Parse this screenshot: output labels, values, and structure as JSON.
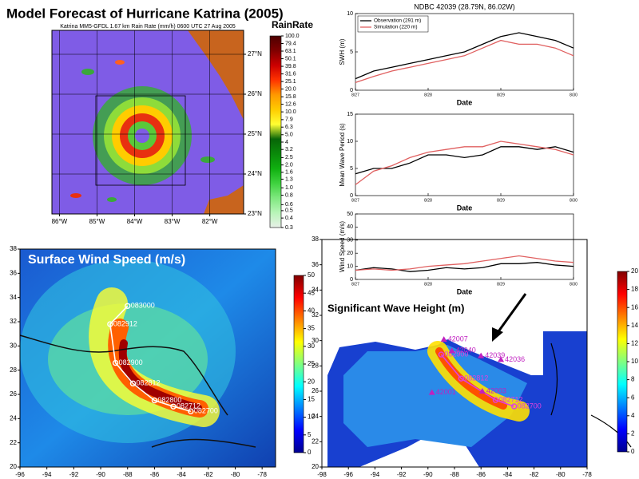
{
  "title": "Model Forecast of Hurricane Katrina (2005)",
  "chart_data": [
    {
      "type": "map",
      "subtitle": "Katrina MM5-GFDL 1.67 km Rain Rate (mm/h) 0600 UTC 27 Aug 2005",
      "xlim": [
        -86.2,
        -81.1
      ],
      "ylim": [
        23,
        27.6
      ],
      "xticks": [
        {
          "value": -86,
          "label": "86°W"
        },
        {
          "value": -85,
          "label": "85°W"
        },
        {
          "value": -84,
          "label": "84°W"
        },
        {
          "value": -83,
          "label": "83°W"
        },
        {
          "value": -82,
          "label": "82°W"
        }
      ],
      "yticks": [
        {
          "value": 23,
          "label": "23°N"
        },
        {
          "value": 24,
          "label": "24°N"
        },
        {
          "value": 25,
          "label": "25°N"
        },
        {
          "value": 26,
          "label": "26°N"
        },
        {
          "value": 27,
          "label": "27°N"
        }
      ],
      "grid": true,
      "colorbar_label": "RainRate",
      "colorbar_log": true,
      "colorbar_lim": [
        0.3,
        100
      ],
      "colorbar_ticks": [
        {
          "value": 100,
          "label": "100.0"
        },
        79.4,
        63.1,
        50.1,
        39.8,
        31.6,
        25.1,
        {
          "value": 20,
          "label": "20.0"
        },
        15.8,
        12.6,
        {
          "value": 10,
          "label": "10.0"
        },
        7.9,
        6.3,
        {
          "value": 5,
          "label": "5.0"
        },
        4.0,
        3.2,
        2.5,
        {
          "value": 2,
          "label": "2.0"
        },
        1.6,
        1.3,
        {
          "value": 1,
          "label": "1.0"
        },
        0.8,
        0.6,
        0.5,
        0.4,
        0.3
      ],
      "colorbar_colors": [
        "#e8f0e8",
        "#b8f5b8",
        "#7fe87f",
        "#3fd23f",
        "#10b010",
        "#0a8a0a",
        "#086608",
        "#ffff33",
        "#ffcc00",
        "#ff9900",
        "#ff3300",
        "#cc0000",
        "#800000",
        "#4d0000"
      ]
    },
    {
      "type": "line",
      "title": "NDBC 42039 (28.79N, 86.02W)",
      "xlabel": "Date",
      "ylabel": "SWH (m)",
      "categories": [
        "8/27",
        null,
        null,
        null,
        "8/28",
        null,
        null,
        null,
        "8/29",
        null,
        null,
        null,
        "8/30"
      ],
      "ylim": [
        0,
        10
      ],
      "yticks": [
        0,
        5,
        10
      ],
      "legend": "upper left",
      "series": [
        {
          "name": "Observation (291 m)",
          "color": "#000000",
          "values": [
            1.5,
            2.5,
            3,
            3.5,
            4,
            4.5,
            5,
            6,
            7,
            7.5,
            7,
            6.5,
            5.5
          ]
        },
        {
          "name": "Simulation (220 m)",
          "color": "#e06060",
          "values": [
            1,
            1.8,
            2.5,
            3,
            3.5,
            4,
            4.5,
            5.5,
            6.5,
            6,
            6,
            5.5,
            4.5
          ]
        }
      ]
    },
    {
      "type": "line",
      "xlabel": "Date",
      "ylabel": "Mean Wave Period (s)",
      "categories": [
        "8/27",
        null,
        null,
        null,
        "8/28",
        null,
        null,
        null,
        "8/29",
        null,
        null,
        null,
        "8/30"
      ],
      "ylim": [
        0,
        15
      ],
      "yticks": [
        0,
        5,
        10,
        15
      ],
      "series": [
        {
          "color": "#000000",
          "values": [
            4,
            5,
            5,
            6,
            7.5,
            7.5,
            7,
            7.5,
            9,
            9,
            8.5,
            9,
            8
          ]
        },
        {
          "color": "#e06060",
          "values": [
            2,
            4.5,
            5.5,
            7,
            8,
            8.5,
            9,
            9,
            10,
            9.5,
            9,
            8.5,
            7.5
          ]
        }
      ]
    },
    {
      "type": "line",
      "xlabel": "Date",
      "ylabel": "Wind Speed (m/s)",
      "categories": [
        "8/27",
        null,
        null,
        null,
        "8/28",
        null,
        null,
        null,
        "8/29",
        null,
        null,
        null,
        "8/30"
      ],
      "ylim": [
        0,
        50
      ],
      "yticks": [
        0,
        10,
        20,
        30,
        40,
        50
      ],
      "series": [
        {
          "color": "#000000",
          "values": [
            7,
            9,
            8,
            6,
            7,
            9,
            8,
            9,
            12,
            12,
            13,
            11,
            10
          ]
        },
        {
          "color": "#e06060",
          "values": [
            7,
            8,
            7,
            8,
            10,
            11,
            12,
            14,
            16,
            18,
            16,
            14,
            13
          ]
        }
      ]
    },
    {
      "type": "map",
      "title": "Surface Wind Speed (m/s)",
      "xlim": [
        -96,
        -77
      ],
      "ylim": [
        20,
        38
      ],
      "xticks": [
        -96,
        -94,
        -92,
        -90,
        -88,
        -86,
        -84,
        -82,
        -80,
        -78
      ],
      "yticks": [
        20,
        22,
        24,
        26,
        28,
        30,
        32,
        34,
        36,
        38
      ],
      "colorbar_lim": [
        0,
        50
      ],
      "colorbar_ticks": [
        0,
        5,
        10,
        15,
        20,
        25,
        30,
        35,
        40,
        45,
        50
      ],
      "colorbar_colors": [
        "#00008f",
        "#0000ff",
        "#0080ff",
        "#00ffff",
        "#80ff80",
        "#ffff00",
        "#ff8000",
        "#ff0000",
        "#800000"
      ],
      "track": {
        "color": "#ffffff",
        "x": [
          -88.0,
          -89.3,
          -88.9,
          -87.6,
          -86.0,
          -84.6,
          -83.3
        ],
        "y": [
          33.3,
          31.8,
          28.6,
          26.9,
          25.5,
          25.0,
          24.6
        ],
        "labels": [
          "083000",
          "082912",
          "082900",
          "082812",
          "082800",
          "082712",
          "082700"
        ]
      }
    },
    {
      "type": "map",
      "title": "Significant Wave Height (m)",
      "xlim": [
        -98,
        -78
      ],
      "ylim": [
        20,
        38
      ],
      "xticks": [
        -98,
        -96,
        -94,
        -92,
        -90,
        -88,
        -86,
        -84,
        -82,
        -80,
        -78
      ],
      "yticks": [
        20,
        22,
        24,
        26,
        28,
        30,
        32,
        34,
        36,
        38
      ],
      "colorbar_lim": [
        0,
        20
      ],
      "colorbar_ticks": [
        0,
        2,
        4,
        6,
        8,
        10,
        12,
        14,
        16,
        18,
        20
      ],
      "colorbar_colors": [
        "#00008f",
        "#0000ff",
        "#0080ff",
        "#00ffff",
        "#80ff80",
        "#ffff00",
        "#ff8000",
        "#ff0000",
        "#800000"
      ],
      "track": {
        "color": "#e040e0",
        "x": [
          -89.0,
          -87.5,
          -84.9,
          -83.5
        ],
        "y": [
          28.9,
          27.0,
          25.3,
          24.8
        ],
        "labels": [
          "082900",
          "082812",
          "082712",
          "082700"
        ]
      },
      "buoys": {
        "color": "#c020c0",
        "x": [
          -88.8,
          -88.2,
          -86.0,
          -84.5,
          -85.9,
          -89.7
        ],
        "y": [
          30.1,
          29.2,
          28.8,
          28.5,
          26.0,
          25.9
        ],
        "labels": [
          "42007",
          "42040",
          "42039",
          "42036",
          "42003",
          "42001"
        ]
      }
    }
  ]
}
